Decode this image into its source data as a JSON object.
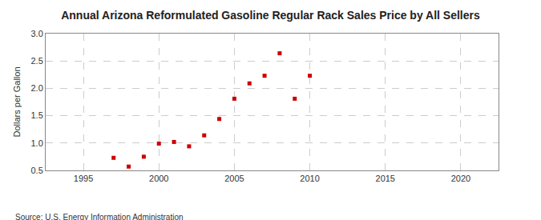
{
  "chart_data": {
    "type": "scatter",
    "title": "Annual Arizona Reformulated Gasoline Regular Rack Sales Price by All Sellers",
    "y_label": "Dollars per Gallon",
    "annotations": [
      "Source: U.S. Energy Information Administration"
    ],
    "x": [
      1997,
      1998,
      1999,
      2000,
      2001,
      2002,
      2003,
      2004,
      2005,
      2006,
      2007,
      2008,
      2009,
      2010
    ],
    "values": [
      0.73,
      0.57,
      0.75,
      0.99,
      1.02,
      0.94,
      1.14,
      1.44,
      1.81,
      2.09,
      2.23,
      2.64,
      1.81,
      2.23
    ],
    "color": "#cc0000",
    "marker": "square",
    "xlim": [
      1992.5,
      2022.5
    ],
    "xticks": [
      1995,
      2000,
      2005,
      2010,
      2015,
      2020
    ],
    "ylim": [
      0.5,
      3.0
    ],
    "yticks": [
      {
        "value": 0.5,
        "label": "0.5"
      },
      {
        "value": 1.0,
        "label": "1.0"
      },
      {
        "value": 1.5,
        "label": "1.5"
      },
      {
        "value": 2.0,
        "label": "2.0"
      },
      {
        "value": 2.5,
        "label": "2.5"
      },
      {
        "value": 3.0,
        "label": "3.0"
      }
    ],
    "grid": true
  }
}
